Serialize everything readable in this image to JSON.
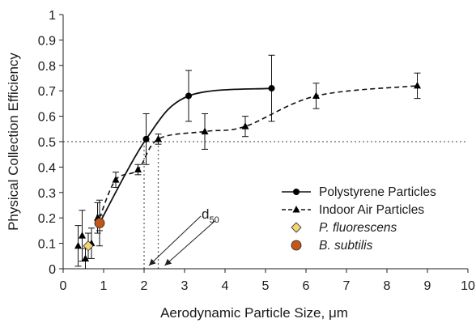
{
  "chart_data": {
    "type": "scatter",
    "xlabel": "Aerodynamic Particle Size, μm",
    "ylabel": "Physical Collection Efficiency",
    "xlim": [
      0,
      10
    ],
    "ylim": [
      0,
      1
    ],
    "x_ticks": [
      "0",
      "1",
      "2",
      "3",
      "4",
      "5",
      "6",
      "7",
      "8",
      "9",
      "10"
    ],
    "y_ticks": [
      "0",
      "0.1",
      "0.2",
      "0.3",
      "0.4",
      "0.5",
      "0.6",
      "0.7",
      "0.8",
      "0.9",
      "1"
    ],
    "grid": false,
    "legend_position": "bottom-right",
    "reference_line_y": 0.5,
    "d50_x": [
      2.0,
      2.35
    ],
    "annotation": {
      "main": "d",
      "sub": "50"
    },
    "series": [
      {
        "name": "Polystyrene Particles",
        "marker": "circle",
        "line": "solid",
        "color": "#000000",
        "x": [
          0.9,
          2.05,
          3.1,
          5.15
        ],
        "y": [
          0.18,
          0.51,
          0.68,
          0.71
        ],
        "err": [
          0.09,
          0.1,
          0.1,
          0.13
        ]
      },
      {
        "name": "Indoor Air Particles",
        "marker": "triangle",
        "line": "dashed",
        "color": "#000000",
        "x": [
          0.37,
          0.47,
          0.55,
          0.7,
          0.85,
          1.3,
          1.85,
          2.35,
          3.5,
          4.5,
          6.25,
          8.75
        ],
        "y": [
          0.09,
          0.13,
          0.04,
          0.1,
          0.2,
          0.35,
          0.39,
          0.51,
          0.54,
          0.56,
          0.68,
          0.72
        ],
        "err": [
          0.08,
          0.1,
          0.04,
          0.06,
          0.06,
          0.03,
          0.02,
          0.02,
          0.07,
          0.04,
          0.05,
          0.05
        ]
      },
      {
        "name": "P. fluorescens",
        "marker": "diamond",
        "color": "#f2d675",
        "x": [
          0.62
        ],
        "y": [
          0.09
        ],
        "err": [
          0.05
        ]
      },
      {
        "name": "B. subtilis",
        "marker": "circle-large",
        "color": "#c2571a",
        "x": [
          0.9
        ],
        "y": [
          0.18
        ],
        "err": [
          0.03
        ]
      }
    ]
  }
}
